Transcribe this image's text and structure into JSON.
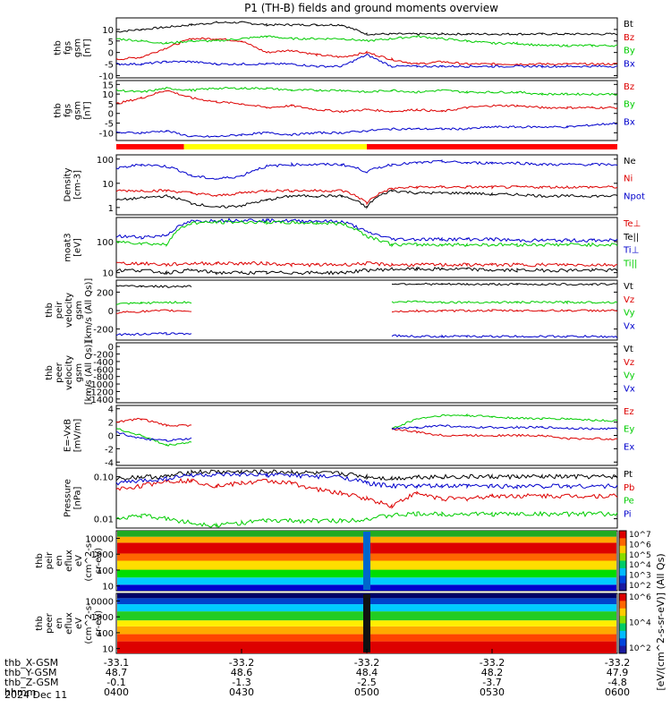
{
  "title": "P1 (TH-B) fields and ground moments overview",
  "date": "2024 Dec 11",
  "colorbar_unit": "[eV/(cm^2-s-sr-eV)] (All Qs)",
  "x_axis": {
    "row_labels": [
      "thb_X-GSM",
      "thb_Y-GSM",
      "thb_Z-GSM",
      "hhmm"
    ],
    "ticks": [
      {
        "values": [
          "-33.1",
          "48.7",
          "-0.1",
          "0400"
        ]
      },
      {
        "values": [
          "-33.2",
          "48.6",
          "-1.3",
          "0430"
        ]
      },
      {
        "values": [
          "-33.2",
          "48.4",
          "-2.5",
          "0500"
        ]
      },
      {
        "values": [
          "-33.2",
          "48.2",
          "-3.7",
          "0530"
        ]
      },
      {
        "values": [
          "-33.2",
          "47.9",
          "-4.8",
          "0600"
        ]
      }
    ]
  },
  "colors": {
    "Bt": "#000000",
    "Bz": "#dd0000",
    "By": "#00cc00",
    "Bx": "#0000cc",
    "bar_red": "#ff0000",
    "bar_yellow": "#ffff00"
  },
  "chart_data": [
    {
      "type": "line",
      "ylabel": [
        "thb",
        "fgs",
        "gsm",
        "[nT]"
      ],
      "ylim": [
        -11,
        15
      ],
      "yticks": [
        "-10",
        "-5",
        "0",
        "5",
        "10"
      ],
      "series": [
        {
          "name": "Bt",
          "color": "#000000"
        },
        {
          "name": "Bz",
          "color": "#dd0000"
        },
        {
          "name": "By",
          "color": "#00cc00"
        },
        {
          "name": "Bx",
          "color": "#0000cc"
        }
      ],
      "x": [
        0,
        0.1,
        0.2,
        0.3,
        0.4,
        0.5,
        0.6,
        0.7,
        0.8,
        0.9,
        1.0,
        1.1,
        1.2,
        1.3,
        1.4,
        1.5,
        1.6,
        1.7,
        1.8,
        1.9,
        2.0
      ],
      "values": {
        "Bt": [
          9,
          10,
          11,
          12,
          13,
          13,
          12,
          12,
          12,
          12,
          8,
          8,
          8,
          8,
          8,
          8,
          8,
          8,
          8,
          8,
          8
        ],
        "Bz": [
          -3,
          -2,
          2,
          6,
          6,
          5,
          0,
          1,
          -1,
          -2,
          0,
          -3,
          -5,
          -4,
          -5,
          -5,
          -5,
          -5,
          -5,
          -5,
          -5
        ],
        "By": [
          6,
          5,
          4,
          5,
          5,
          6,
          7,
          6,
          6,
          6,
          5,
          6,
          7,
          6,
          5,
          4,
          4,
          3,
          3,
          3,
          3
        ],
        "Bx": [
          -5,
          -5,
          -4,
          -4,
          -5,
          -5,
          -5,
          -5,
          -6,
          -6,
          -1,
          -6,
          -6,
          -6,
          -6,
          -6,
          -6,
          -6,
          -6,
          -6,
          -6
        ]
      }
    },
    {
      "type": "line",
      "ylabel": [
        "thb",
        "fgs",
        "gsm",
        "[nT]"
      ],
      "ylim": [
        -14,
        17
      ],
      "yticks": [
        "-10",
        "-5",
        "0",
        "5",
        "10",
        "15"
      ],
      "series": [
        {
          "name": "Bz",
          "color": "#dd0000"
        },
        {
          "name": "By",
          "color": "#00cc00"
        },
        {
          "name": "Bx",
          "color": "#0000cc"
        }
      ],
      "x": [
        0,
        0.1,
        0.2,
        0.3,
        0.4,
        0.5,
        0.6,
        0.7,
        0.8,
        0.9,
        1.0,
        1.1,
        1.2,
        1.3,
        1.4,
        1.5,
        1.6,
        1.7,
        1.8,
        1.9,
        2.0
      ],
      "values": {
        "Bz": [
          5,
          8,
          12,
          8,
          6,
          5,
          3,
          4,
          2,
          1,
          2,
          1,
          2,
          1,
          3,
          4,
          4,
          3,
          3,
          3,
          3
        ],
        "By": [
          12,
          11,
          13,
          12,
          13,
          13,
          13,
          12,
          12,
          12,
          11,
          12,
          11,
          12,
          11,
          11,
          11,
          10,
          10,
          10,
          10
        ],
        "Bx": [
          -10,
          -10,
          -9,
          -12,
          -12,
          -11,
          -10,
          -11,
          -10,
          -10,
          -9,
          -8,
          -8,
          -8,
          -8,
          -7,
          -7,
          -7,
          -7,
          -6,
          -5
        ]
      }
    },
    {
      "type": "line",
      "scale": "log",
      "ylabel": [
        "Density",
        "[cm-3]"
      ],
      "ylim": [
        0.5,
        150
      ],
      "yticks": [
        "1",
        "10",
        "100"
      ],
      "series": [
        {
          "name": "Ne",
          "color": "#000000"
        },
        {
          "name": "Ni",
          "color": "#dd0000"
        },
        {
          "name": "Npot",
          "color": "#0000cc"
        }
      ],
      "x": [
        0,
        0.1,
        0.2,
        0.3,
        0.4,
        0.5,
        0.6,
        0.7,
        0.8,
        0.9,
        1.0,
        1.1,
        1.2,
        1.3,
        1.4,
        1.5,
        1.6,
        1.7,
        1.8,
        1.9,
        2.0
      ],
      "values": {
        "Ne": [
          2,
          2.5,
          3,
          1.5,
          1,
          1.2,
          2,
          3,
          3,
          3,
          1,
          5,
          4,
          4,
          4,
          3.5,
          3.5,
          3,
          3,
          3,
          3
        ],
        "Ni": [
          5,
          5,
          5,
          4,
          3,
          4,
          5,
          5,
          5,
          5,
          1.5,
          6,
          7,
          7,
          7,
          7,
          7,
          7,
          7,
          7,
          7
        ],
        "Npot": [
          40,
          60,
          50,
          20,
          15,
          20,
          50,
          60,
          60,
          60,
          30,
          60,
          70,
          80,
          70,
          70,
          70,
          60,
          60,
          60,
          60
        ]
      }
    },
    {
      "type": "line",
      "scale": "log",
      "ylabel": [
        "moat3",
        "[eV]"
      ],
      "ylim": [
        7,
        600
      ],
      "yticks": [
        "10",
        "100"
      ],
      "series": [
        {
          "name": "Te⊥",
          "color": "#dd0000"
        },
        {
          "name": "Te||",
          "color": "#000000"
        },
        {
          "name": "Ti⊥",
          "color": "#0000cc"
        },
        {
          "name": "Ti||",
          "color": "#00cc00"
        }
      ],
      "x": [
        0,
        0.1,
        0.2,
        0.3,
        0.4,
        0.5,
        0.6,
        0.7,
        0.8,
        0.9,
        1.0,
        1.1,
        1.2,
        1.3,
        1.4,
        1.5,
        1.6,
        1.7,
        1.8,
        1.9,
        2.0
      ],
      "values": {
        "Te⊥": [
          20,
          20,
          18,
          20,
          20,
          20,
          20,
          18,
          18,
          18,
          20,
          18,
          18,
          18,
          18,
          18,
          18,
          18,
          18,
          18,
          18
        ],
        "Te||": [
          12,
          12,
          10,
          12,
          10,
          10,
          10,
          10,
          10,
          10,
          12,
          13,
          13,
          13,
          13,
          12,
          12,
          12,
          12,
          12,
          12
        ],
        "Ti⊥": [
          150,
          140,
          160,
          450,
          480,
          500,
          480,
          470,
          460,
          440,
          200,
          120,
          120,
          120,
          120,
          120,
          110,
          110,
          110,
          110,
          110
        ],
        "Ti||": [
          100,
          90,
          80,
          400,
          420,
          430,
          420,
          410,
          400,
          380,
          150,
          80,
          80,
          80,
          80,
          80,
          80,
          80,
          80,
          80,
          80
        ]
      }
    },
    {
      "type": "line",
      "ylabel": [
        "thb",
        "peir",
        "velocity",
        "gsm",
        "[km/s (All Qs)]"
      ],
      "ylim": [
        -320,
        330
      ],
      "yticks": [
        "-200",
        "0",
        "200"
      ],
      "series": [
        {
          "name": "Vt",
          "color": "#000000"
        },
        {
          "name": "Vz",
          "color": "#dd0000"
        },
        {
          "name": "Vy",
          "color": "#00cc00"
        },
        {
          "name": "Vx",
          "color": "#0000cc"
        }
      ],
      "x": [
        0,
        0.1,
        0.2,
        0.3,
        0.4,
        0.5,
        0.6,
        0.7,
        0.8,
        0.9,
        1.0,
        1.1,
        1.2,
        1.3,
        1.4,
        1.5,
        1.6,
        1.7,
        1.8,
        1.9,
        2.0
      ],
      "values": {
        "Vt": [
          270,
          265,
          260,
          265,
          null,
          null,
          null,
          null,
          null,
          null,
          null,
          290,
          290,
          285,
          285,
          285,
          285,
          285,
          285,
          285,
          285
        ],
        "Vz": [
          -20,
          -10,
          0,
          -5,
          null,
          null,
          null,
          null,
          null,
          null,
          null,
          -10,
          -5,
          -5,
          0,
          0,
          0,
          0,
          0,
          0,
          0
        ],
        "Vy": [
          70,
          80,
          90,
          90,
          null,
          null,
          null,
          null,
          null,
          null,
          null,
          90,
          100,
          90,
          90,
          90,
          90,
          90,
          90,
          90,
          90
        ],
        "Vx": [
          -260,
          -255,
          -250,
          -250,
          null,
          null,
          null,
          null,
          null,
          null,
          null,
          -270,
          -280,
          -280,
          -280,
          -280,
          -280,
          -280,
          -280,
          -280,
          -285
        ]
      }
    },
    {
      "type": "line",
      "ylabel": [
        "thb",
        "peer",
        "velocity",
        "gsm",
        "[km/s (All Qs)]"
      ],
      "ylim": [
        -1500,
        100
      ],
      "yticks": [
        "-1400",
        "-1200",
        "-1000",
        "-800",
        "-600",
        "-400",
        "-200",
        "0"
      ],
      "series": [
        {
          "name": "Vt",
          "color": "#000000"
        },
        {
          "name": "Vz",
          "color": "#dd0000"
        },
        {
          "name": "Vy",
          "color": "#00cc00"
        },
        {
          "name": "Vx",
          "color": "#0000cc"
        }
      ],
      "x": [],
      "values": {
        "Vt": [],
        "Vz": [],
        "Vy": [],
        "Vx": []
      }
    },
    {
      "type": "line",
      "ylabel": [
        "E=-VxB",
        "[mV/m]"
      ],
      "ylim": [
        -4.5,
        4.5
      ],
      "yticks": [
        "-4",
        "-2",
        "0",
        "2",
        "4"
      ],
      "series": [
        {
          "name": "Ez",
          "color": "#dd0000"
        },
        {
          "name": "Ey",
          "color": "#00cc00"
        },
        {
          "name": "Ex",
          "color": "#0000cc"
        }
      ],
      "x": [
        0,
        0.1,
        0.2,
        0.3,
        0.4,
        0.5,
        0.6,
        0.7,
        0.8,
        0.9,
        1.0,
        1.1,
        1.2,
        1.3,
        1.4,
        1.5,
        1.6,
        1.7,
        1.8,
        1.9,
        2.0
      ],
      "values": {
        "Ez": [
          2,
          2.5,
          1.5,
          1.5,
          null,
          null,
          null,
          null,
          null,
          null,
          null,
          1,
          0.5,
          0,
          0,
          0,
          0,
          0,
          -0.5,
          -0.5,
          -0.5
        ],
        "Ey": [
          1,
          0,
          -1.5,
          -1,
          null,
          null,
          null,
          null,
          null,
          null,
          null,
          1,
          2.5,
          3,
          3,
          2.8,
          2.6,
          2.5,
          2.5,
          2.3,
          2.2
        ],
        "Ex": [
          0.5,
          -0.5,
          -0.8,
          -0.5,
          null,
          null,
          null,
          null,
          null,
          null,
          null,
          1,
          1.2,
          1.5,
          1.2,
          1.2,
          1.2,
          1.2,
          1.1,
          1,
          1
        ]
      }
    },
    {
      "type": "line",
      "scale": "log",
      "ylabel": [
        "Pressure",
        "[nPa]"
      ],
      "ylim": [
        0.006,
        0.16
      ],
      "yticks": [
        "0.01",
        "0.10"
      ],
      "series": [
        {
          "name": "Pt",
          "color": "#000000"
        },
        {
          "name": "Pb",
          "color": "#dd0000"
        },
        {
          "name": "Pe",
          "color": "#00cc00"
        },
        {
          "name": "Pi",
          "color": "#0000cc"
        }
      ],
      "x": [
        0,
        0.1,
        0.2,
        0.3,
        0.4,
        0.5,
        0.6,
        0.7,
        0.8,
        0.9,
        1.0,
        1.1,
        1.2,
        1.3,
        1.4,
        1.5,
        1.6,
        1.7,
        1.8,
        1.9,
        2.0
      ],
      "values": {
        "Pt": [
          0.09,
          0.1,
          0.1,
          0.13,
          0.13,
          0.13,
          0.13,
          0.13,
          0.12,
          0.12,
          0.1,
          0.09,
          0.1,
          0.1,
          0.1,
          0.1,
          0.1,
          0.1,
          0.1,
          0.1,
          0.1
        ],
        "Pb": [
          0.05,
          0.06,
          0.08,
          0.08,
          0.06,
          0.07,
          0.08,
          0.07,
          0.05,
          0.04,
          0.03,
          0.02,
          0.04,
          0.03,
          0.03,
          0.035,
          0.035,
          0.035,
          0.035,
          0.035,
          0.035
        ],
        "Pe": [
          0.01,
          0.012,
          0.01,
          0.008,
          0.007,
          0.008,
          0.009,
          0.009,
          0.009,
          0.009,
          0.01,
          0.012,
          0.013,
          0.013,
          0.013,
          0.013,
          0.013,
          0.013,
          0.013,
          0.013,
          0.013
        ],
        "Pi": [
          0.07,
          0.08,
          0.09,
          0.11,
          0.11,
          0.11,
          0.11,
          0.11,
          0.1,
          0.1,
          0.07,
          0.06,
          0.06,
          0.06,
          0.06,
          0.06,
          0.06,
          0.06,
          0.06,
          0.06,
          0.06
        ]
      }
    },
    {
      "type": "heatmap",
      "ylabel": [
        "thb",
        "peir",
        "en",
        "eflux",
        "eV",
        "(cm^2-s-",
        "sr-eV)"
      ],
      "yticks": [
        "10",
        "100",
        "1000",
        "10000"
      ],
      "colorbar_ticks": [
        "10^2",
        "10^3",
        "10^4",
        "10^5",
        "10^6",
        "10^7"
      ]
    },
    {
      "type": "heatmap",
      "ylabel": [
        "thb",
        "peer",
        "en",
        "eflux",
        "eV",
        "(cm^2-s-",
        "sr-eV)"
      ],
      "yticks": [
        "10",
        "100",
        "1000",
        "10000"
      ],
      "colorbar_ticks": [
        "10^2",
        "10^4",
        "10^6"
      ]
    }
  ]
}
